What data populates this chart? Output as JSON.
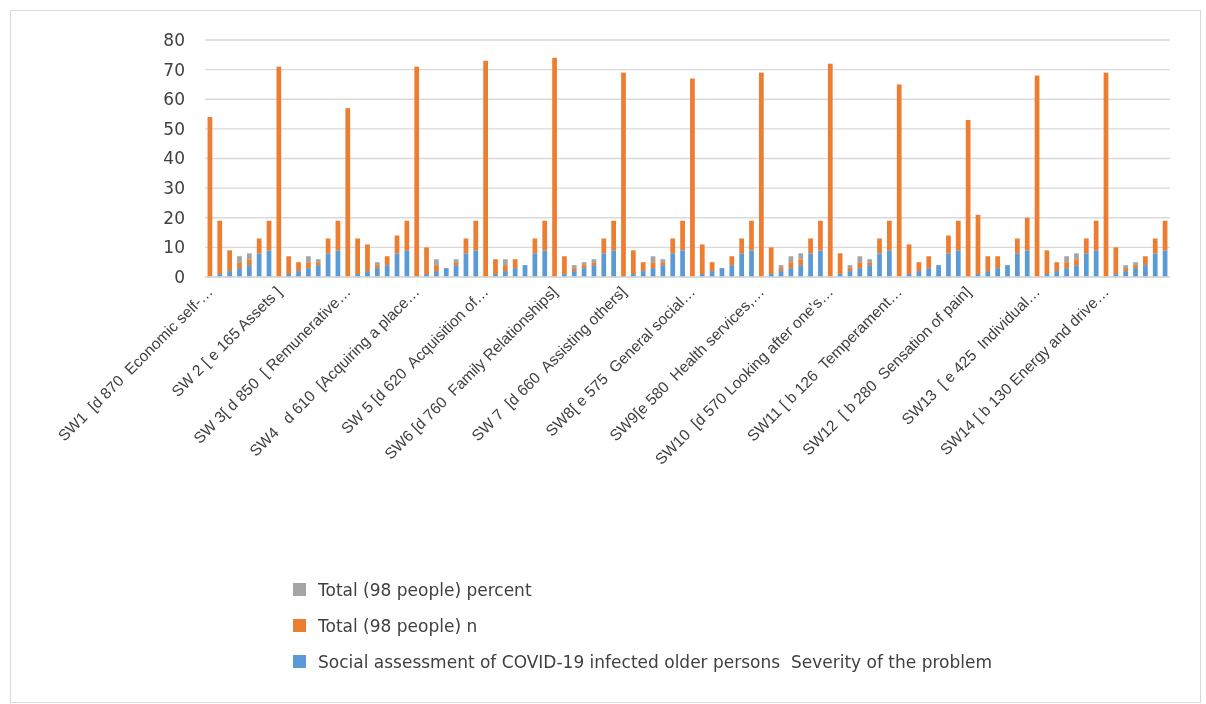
{
  "chart_data": {
    "type": "bar",
    "stacked": true,
    "categories": [
      "SW1  [d 870  Economic self-…",
      null,
      null,
      null,
      null,
      null,
      null,
      "SW 2 [ e 165 Assets ]",
      null,
      null,
      null,
      null,
      null,
      null,
      "SW 3[ d 850  [ Remunerative…",
      null,
      null,
      null,
      null,
      null,
      null,
      "SW4   d 610  [Acquiring a place…",
      null,
      null,
      null,
      null,
      null,
      null,
      "SW 5 [d 620  Acquisition of…",
      null,
      null,
      null,
      null,
      null,
      null,
      "SW6 [d 760  Family Relationships]",
      null,
      null,
      null,
      null,
      null,
      null,
      "SW 7  [d 660  Assisting others]",
      null,
      null,
      null,
      null,
      null,
      null,
      "SW8[ e 575  General social…",
      null,
      null,
      null,
      null,
      null,
      null,
      "SW9[e 580  Health services,…",
      null,
      null,
      null,
      null,
      null,
      null,
      "SW10  [d 570 Looking after one's…",
      null,
      null,
      null,
      null,
      null,
      null,
      "SW11 [ b 126  Temperament…",
      null,
      null,
      null,
      null,
      null,
      null,
      "SW12  [ b 280  Sensation of pain]",
      null,
      null,
      null,
      null,
      null,
      null,
      "SW13  [ e 425  Individual…",
      null,
      null,
      null,
      null,
      null,
      null,
      "SW14 [ b 130 Energy and drive…",
      null,
      null,
      null,
      null,
      null,
      null
    ],
    "series": [
      {
        "name": "Social assessment of COVID-19 infected older persons  Severity of the problem",
        "color": "#5b9bd5",
        "values": [
          0,
          1,
          2,
          3,
          4,
          8,
          9,
          0,
          1,
          2,
          3,
          4,
          8,
          9,
          0,
          1,
          2,
          3,
          4,
          8,
          9,
          0,
          1,
          2,
          3,
          4,
          8,
          9,
          0,
          1,
          2,
          3,
          4,
          8,
          9,
          0,
          1,
          2,
          3,
          4,
          8,
          9,
          0,
          1,
          2,
          3,
          4,
          8,
          9,
          0,
          1,
          2,
          3,
          4,
          8,
          9,
          0,
          1,
          2,
          3,
          4,
          8,
          9,
          0,
          1,
          2,
          3,
          4,
          8,
          9,
          0,
          1,
          2,
          3,
          4,
          8,
          9,
          0,
          1,
          2,
          3,
          4,
          8,
          9,
          0,
          1,
          2,
          3,
          4,
          8,
          9,
          0,
          1,
          2,
          3,
          4,
          8,
          9
        ]
      },
      {
        "name": "Total (98 people) n",
        "color": "#ed7d31",
        "values": [
          54,
          18,
          7,
          2,
          2,
          5,
          10,
          71,
          6,
          3,
          2,
          1,
          5,
          10,
          57,
          12,
          9,
          1,
          3,
          6,
          10,
          71,
          9,
          2,
          0,
          1,
          5,
          10,
          73,
          5,
          2,
          3,
          0,
          5,
          10,
          74,
          6,
          1,
          1,
          1,
          5,
          10,
          69,
          8,
          3,
          2,
          1,
          5,
          10,
          67,
          10,
          3,
          0,
          3,
          5,
          10,
          69,
          9,
          1,
          2,
          2,
          5,
          10,
          72,
          7,
          1,
          2,
          1,
          5,
          10,
          65,
          10,
          3,
          4,
          0,
          6,
          10,
          53,
          20,
          5,
          4,
          0,
          5,
          11,
          68,
          8,
          3,
          2,
          2,
          5,
          10,
          69,
          9,
          1,
          1,
          3,
          5,
          10
        ]
      },
      {
        "name": "Total (98 people) percent",
        "color": "#a5a5a5",
        "values": [
          0,
          0,
          0,
          2,
          2,
          0,
          0,
          0,
          0,
          0,
          2,
          1,
          0,
          0,
          0,
          0,
          0,
          1,
          0,
          0,
          0,
          0,
          0,
          2,
          0,
          1,
          0,
          0,
          0,
          0,
          2,
          0,
          0,
          0,
          0,
          0,
          0,
          1,
          1,
          1,
          0,
          0,
          0,
          0,
          0,
          2,
          1,
          0,
          0,
          0,
          0,
          0,
          0,
          0,
          0,
          0,
          0,
          0,
          1,
          2,
          2,
          0,
          0,
          0,
          0,
          1,
          2,
          1,
          0,
          0,
          0,
          0,
          0,
          0,
          0,
          0,
          0,
          0,
          0,
          0,
          0,
          0,
          0,
          0,
          0,
          0,
          0,
          2,
          2,
          0,
          0,
          0,
          0,
          1,
          1,
          0,
          0,
          0
        ]
      }
    ],
    "ylim": [
      0,
      80
    ],
    "yticks": [
      0,
      10,
      20,
      30,
      40,
      50,
      60,
      70,
      80
    ],
    "grid": true,
    "legend": "bottom"
  }
}
